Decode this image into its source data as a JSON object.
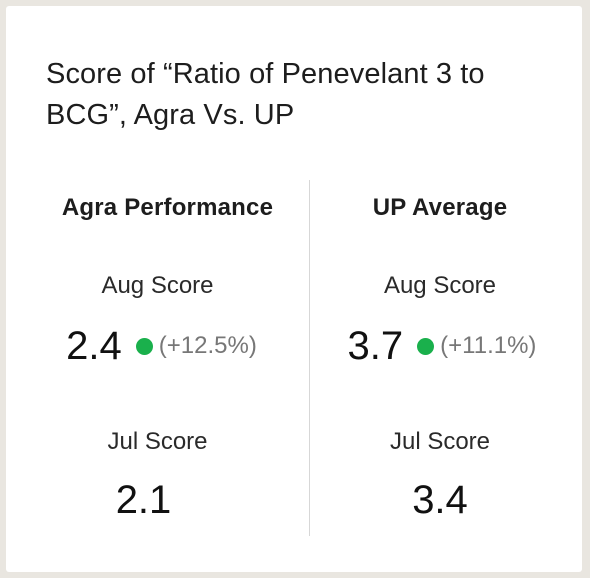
{
  "card": {
    "title": "Score of “Ratio of Penevelant 3 to BCG”, Agra Vs. UP"
  },
  "columns": [
    {
      "header": "Agra Performance",
      "aug_label": "Aug Score",
      "aug_value": "2.4",
      "aug_change": "(+12.5%)",
      "jul_label": "Jul Score",
      "jul_value": "2.1"
    },
    {
      "header": "UP Average",
      "aug_label": "Aug Score",
      "aug_value": "3.7",
      "aug_change": "(+11.1%)",
      "jul_label": "Jul Score",
      "jul_value": "3.4"
    }
  ],
  "colors": {
    "indicator": "#1ab04c",
    "background": "#e9e6e0",
    "card": "#ffffff",
    "divider": "#d7d7d7"
  },
  "icons": {
    "status_indicator": "green-dot-icon"
  }
}
